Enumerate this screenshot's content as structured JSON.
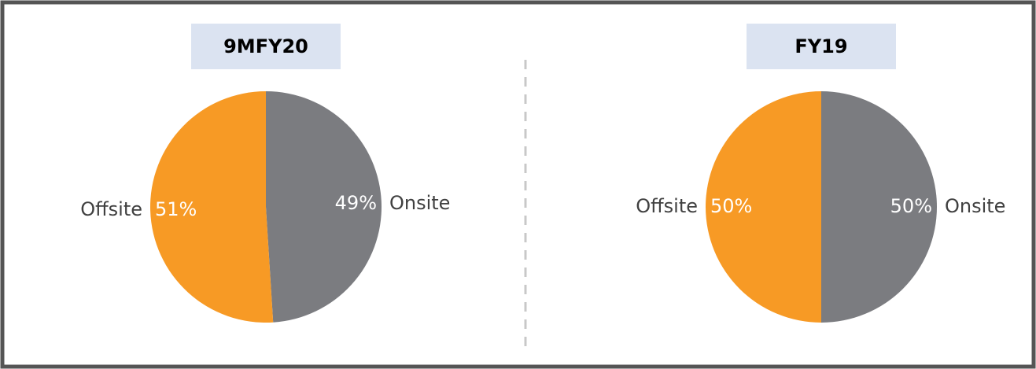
{
  "chart_data": [
    {
      "type": "pie",
      "title": "9MFY20",
      "categories": [
        "Onsite",
        "Offsite"
      ],
      "values": [
        49,
        51
      ],
      "value_labels": [
        "49%",
        "51%"
      ],
      "colors": [
        "#7b7c80",
        "#f79a25"
      ]
    },
    {
      "type": "pie",
      "title": "FY19",
      "categories": [
        "Onsite",
        "Offsite"
      ],
      "values": [
        50,
        50
      ],
      "value_labels": [
        "50%",
        "50%"
      ],
      "colors": [
        "#7b7c80",
        "#f79a25"
      ]
    }
  ]
}
